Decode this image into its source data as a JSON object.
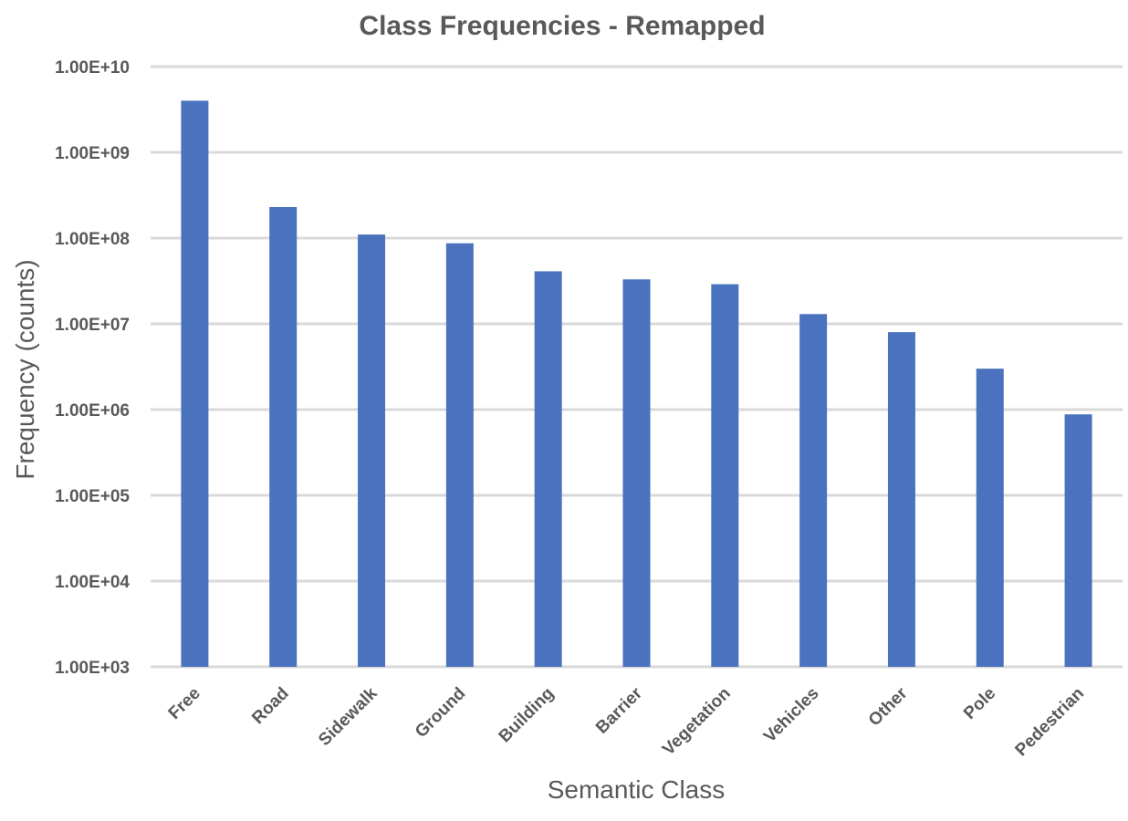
{
  "chart_data": {
    "type": "bar",
    "title": "Class Frequencies - Remapped",
    "xlabel": "Semantic Class",
    "ylabel": "Frequency (counts)",
    "yscale": "log",
    "ylim": [
      1000,
      10000000000
    ],
    "yticks": [
      1000,
      10000,
      100000,
      1000000,
      10000000,
      100000000,
      1000000000,
      10000000000
    ],
    "ytick_labels": [
      "1.00E+03",
      "1.00E+04",
      "1.00E+05",
      "1.00E+06",
      "1.00E+07",
      "1.00E+08",
      "1.00E+09",
      "1.00E+10"
    ],
    "grid": true,
    "color": "#4a72bf",
    "categories": [
      "Free",
      "Road",
      "Sidewalk",
      "Ground",
      "Building",
      "Barrier",
      "Vegetation",
      "Vehicles",
      "Other",
      "Pole",
      "Pedestrian"
    ],
    "values": [
      4000000000,
      230000000,
      110000000,
      87000000,
      41000000,
      33000000,
      29000000,
      13000000,
      8000000,
      3000000,
      880000
    ]
  }
}
